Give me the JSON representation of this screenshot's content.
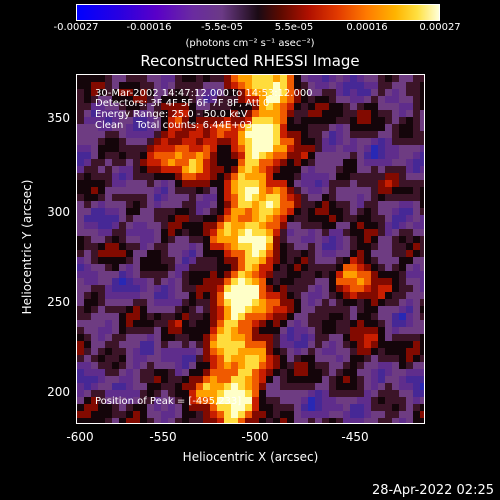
{
  "colorbar": {
    "ticks": [
      "-0.00027",
      "-0.00016",
      "-5.5e-05",
      "5.5e-05",
      "0.00016",
      "0.00027"
    ],
    "units_text": "(photons cm⁻² s⁻¹ asec⁻²)"
  },
  "title": "Reconstructed RHESSI Image",
  "info": {
    "line1": "30-Mar-2002 14:47:12.000 to 14:53:12.000",
    "line2": "Detectors: 3F 4F 5F 6F 7F 8F, Att 0",
    "line3": "Energy Range: 25.0 - 50.0 keV",
    "line4": "Clean    Total counts: 6.44E+03",
    "peak": "Position of Peak = [-495,233]"
  },
  "axes": {
    "xlabel": "Heliocentric X (arcsec)",
    "ylabel": "Heliocentric Y (arcsec)",
    "xticks": [
      "-600",
      "-550",
      "-500",
      "-450"
    ],
    "yticks": [
      "350",
      "300",
      "250",
      "200"
    ]
  },
  "timestamp": "28-Apr-2022 02:25",
  "colors": {
    "background": "#000000",
    "text": "#ffffff"
  }
}
